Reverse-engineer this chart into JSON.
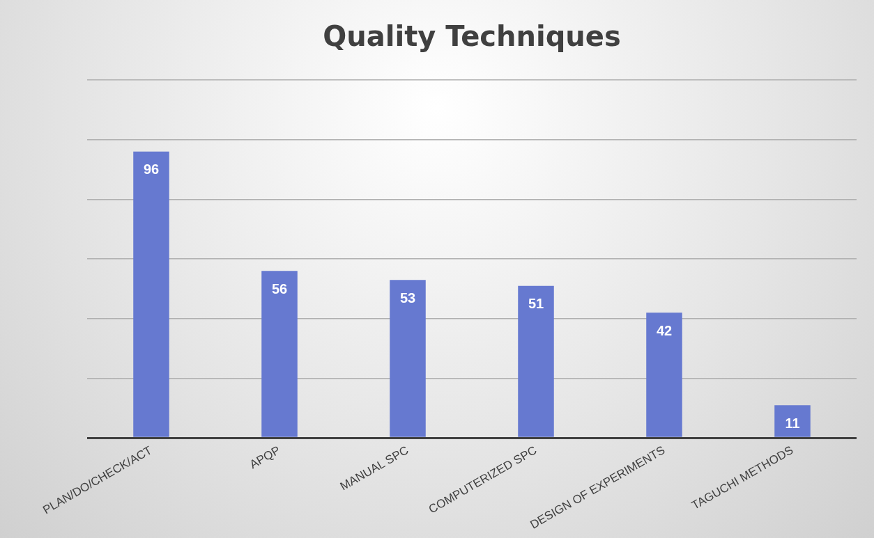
{
  "chart_data": {
    "type": "bar",
    "title": "Quality Techniques",
    "categories": [
      "PLAN/DO/CHECK/ACT",
      "APQP",
      "MANUAL SPC",
      "COMPUTERIZED SPC",
      "DESIGN OF EXPERIMENTS",
      "TAGUCHI METHODS"
    ],
    "values": [
      96,
      56,
      53,
      51,
      42,
      11
    ],
    "color": "#6679d0",
    "ylim": [
      0,
      120
    ],
    "yticks": [
      {
        "value": 0,
        "label": null
      },
      {
        "value": 20,
        "label": null
      },
      {
        "value": 40,
        "label": null
      },
      {
        "value": 60,
        "label": null
      },
      {
        "value": 80,
        "label": null
      },
      {
        "value": 100,
        "label": null
      },
      {
        "value": 120,
        "label": null
      }
    ],
    "grid": "y",
    "tick_labels": "x",
    "data_labels": true,
    "legend": false
  }
}
